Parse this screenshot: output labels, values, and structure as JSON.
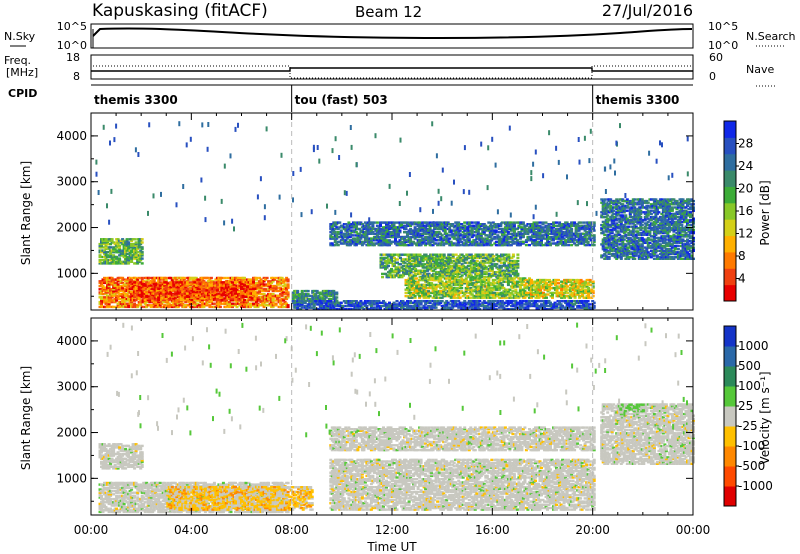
{
  "header": {
    "station": "Kapuskasing (fitACF)",
    "beam": "Beam 12",
    "date": "27/Jul/2016"
  },
  "nsky": {
    "label": "N.Sky",
    "ticks": [
      "10^5",
      "10^0"
    ],
    "right_label": "N.Search",
    "right_ticks": [
      "10^5",
      "10^0"
    ]
  },
  "freq": {
    "label_line1": "Freq.",
    "label_line2": "[MHz]",
    "ticks": [
      "18",
      "8"
    ],
    "right_label": "Nave",
    "right_ticks": [
      "60",
      "0"
    ]
  },
  "cpid": {
    "label": "CPID",
    "segments": [
      {
        "start": 0,
        "end": 8,
        "name": "themis 3300"
      },
      {
        "start": 8,
        "end": 20,
        "name": "tou (fast) 503"
      },
      {
        "start": 20,
        "end": 24,
        "name": "themis 3300"
      }
    ]
  },
  "chart_data": [
    {
      "type": "heatmap",
      "ylabel": "Slant Range [km]",
      "ylim": [
        200,
        4500
      ],
      "yticks": [
        "1000",
        "2000",
        "3000",
        "4000"
      ],
      "xlim": [
        0,
        24
      ],
      "colorbar": {
        "label": "Power [dB]",
        "ticks": [
          "28",
          "24",
          "20",
          "16",
          "12",
          "8",
          "4"
        ],
        "colors": [
          "#1028e8",
          "#2850c0",
          "#2f6ea0",
          "#3a8a6a",
          "#3cac38",
          "#88c828",
          "#d4d018",
          "#ffb000",
          "#ff7a00",
          "#f04010",
          "#e80000"
        ]
      },
      "regions": [
        {
          "t0": 0.3,
          "t1": 2.0,
          "r0": 1200,
          "r1": 1750,
          "level": 4
        },
        {
          "t0": 0.3,
          "t1": 7.8,
          "r0": 250,
          "r1": 900,
          "level": 8
        },
        {
          "t0": 1.5,
          "t1": 6.5,
          "r0": 400,
          "r1": 800,
          "level": 9
        },
        {
          "t0": 8.0,
          "t1": 9.8,
          "r0": 350,
          "r1": 600,
          "level": 3
        },
        {
          "t0": 11.5,
          "t1": 17.0,
          "r0": 900,
          "r1": 1400,
          "level": 4
        },
        {
          "t0": 12.5,
          "t1": 17.5,
          "r0": 450,
          "r1": 900,
          "level": 5
        },
        {
          "t0": 17.5,
          "t1": 20.0,
          "r0": 450,
          "r1": 850,
          "level": 6
        },
        {
          "t0": 9.5,
          "t1": 20.0,
          "r0": 1600,
          "r1": 2100,
          "level": 2
        },
        {
          "t0": 20.3,
          "t1": 24.0,
          "r0": 1300,
          "r1": 2600,
          "level": 2
        },
        {
          "t0": 8.0,
          "t1": 20.0,
          "r0": 200,
          "r1": 400,
          "level": 1
        }
      ]
    },
    {
      "type": "heatmap",
      "ylabel": "Slant Range [km]",
      "ylim": [
        200,
        4500
      ],
      "yticks": [
        "1000",
        "2000",
        "3000",
        "4000"
      ],
      "xlim": [
        0,
        24
      ],
      "xticks": [
        "00:00",
        "04:00",
        "08:00",
        "12:00",
        "16:00",
        "20:00",
        "00:00"
      ],
      "xlabel": "Time UT",
      "colorbar": {
        "label": "Velocity [m s⁻¹]",
        "ticks": [
          "1000",
          "500",
          "100",
          "25",
          "-25",
          "-100",
          "-500",
          "-1000"
        ],
        "colors": [
          "#1434c8",
          "#2a68a8",
          "#2c8a5a",
          "#56c83a",
          "#c8c8c0",
          "#ffc000",
          "#ff8800",
          "#ff4a00",
          "#e00000"
        ]
      },
      "regions": [
        {
          "t0": 0.3,
          "t1": 2.0,
          "r0": 1200,
          "r1": 1750,
          "cls": "gray"
        },
        {
          "t0": 0.3,
          "t1": 7.8,
          "r0": 250,
          "r1": 900,
          "cls": "gray"
        },
        {
          "t0": 3.0,
          "t1": 8.8,
          "r0": 300,
          "r1": 800,
          "cls": "orange"
        },
        {
          "t0": 9.5,
          "t1": 20.0,
          "r0": 300,
          "r1": 1400,
          "cls": "gray"
        },
        {
          "t0": 9.5,
          "t1": 20.0,
          "r0": 1600,
          "r1": 2100,
          "cls": "gray"
        },
        {
          "t0": 20.3,
          "t1": 24.0,
          "r0": 1300,
          "r1": 2600,
          "cls": "gray"
        },
        {
          "t0": 21.0,
          "t1": 22.0,
          "r0": 2450,
          "r1": 2600,
          "cls": "green"
        }
      ]
    }
  ]
}
